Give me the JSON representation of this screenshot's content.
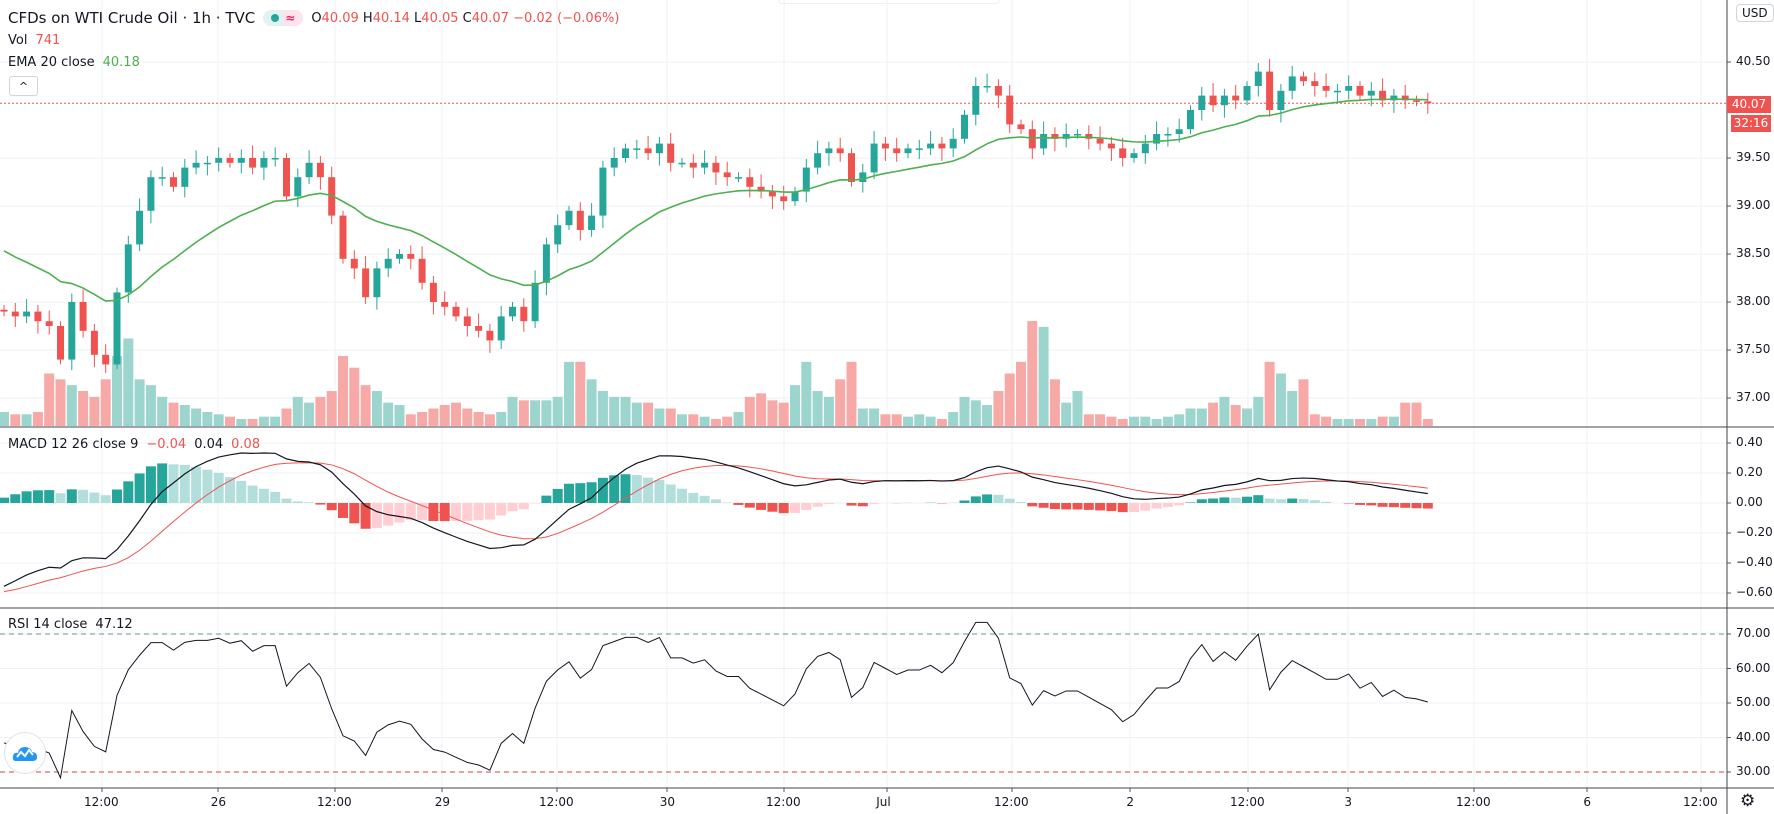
{
  "header": {
    "symbol_title": "CFDs on WTI Crude Oil · 1h · TVC",
    "open_label": "O",
    "open": "40.09",
    "high_label": "H",
    "high": "40.14",
    "low_label": "L",
    "low": "40.05",
    "close_label": "C",
    "close": "40.07",
    "change": "−0.02 (−0.06%)",
    "wave_icon": "≈"
  },
  "legends": {
    "vol_label": "Vol",
    "vol_value": "741",
    "ema_label": "EMA 20 close",
    "ema_value": "40.18",
    "macd_label": "MACD 12 26 close 9",
    "macd_hist": "−0.04",
    "macd_line": "0.04",
    "macd_signal": "0.08",
    "rsi_label": "RSI 14 close",
    "rsi_value": "47.12"
  },
  "buttons": {
    "collapse": "^",
    "currency": "USD",
    "settings_icon": "gear-icon"
  },
  "price_scale": {
    "ticks": [
      "40.50",
      "39.50",
      "39.00",
      "38.50",
      "38.00",
      "37.50",
      "37.00"
    ],
    "last_price": "40.07",
    "countdown": "32:16"
  },
  "macd_scale": {
    "ticks": [
      "0.40",
      "0.20",
      "0.00",
      "−0.20",
      "−0.40",
      "−0.60"
    ]
  },
  "rsi_scale": {
    "ticks": [
      "70.00",
      "60.00",
      "50.00",
      "40.00",
      "30.00"
    ],
    "upper_band": 70,
    "lower_band": 30
  },
  "time_axis": {
    "labels": [
      "12:00",
      "26",
      "12:00",
      "29",
      "12:00",
      "30",
      "12:00",
      "Jul",
      "12:00",
      "2",
      "12:00",
      "3",
      "12:00",
      "6",
      "12:00"
    ]
  },
  "colors": {
    "up": "#26a69a",
    "down": "#ef5350",
    "ema": "#4caf50",
    "macd": "#131722",
    "signal": "#ef5350",
    "rsi": "#131722"
  },
  "chart_data": {
    "type": "candlestick",
    "instrument": "CFDs on WTI Crude Oil",
    "interval": "1h",
    "price_range": [
      36.9,
      40.7
    ],
    "close": [
      37.9,
      37.85,
      37.9,
      37.8,
      37.75,
      37.4,
      38.0,
      37.7,
      37.45,
      37.35,
      38.1,
      38.6,
      38.95,
      39.3,
      39.3,
      39.2,
      39.4,
      39.45,
      39.45,
      39.5,
      39.45,
      39.5,
      39.4,
      39.5,
      39.5,
      39.1,
      39.3,
      39.45,
      39.3,
      38.9,
      38.45,
      38.35,
      38.05,
      38.35,
      38.45,
      38.5,
      38.45,
      38.2,
      38.0,
      37.95,
      37.85,
      37.75,
      37.7,
      37.6,
      37.85,
      37.95,
      37.8,
      38.2,
      38.6,
      38.8,
      38.95,
      38.75,
      38.9,
      39.4,
      39.5,
      39.6,
      39.6,
      39.55,
      39.65,
      39.45,
      39.45,
      39.4,
      39.45,
      39.35,
      39.3,
      39.3,
      39.2,
      39.15,
      39.1,
      39.05,
      39.15,
      39.4,
      39.55,
      39.6,
      39.55,
      39.25,
      39.35,
      39.65,
      39.6,
      39.55,
      39.6,
      39.6,
      39.65,
      39.6,
      39.7,
      39.95,
      40.25,
      40.25,
      40.15,
      39.85,
      39.8,
      39.6,
      39.75,
      39.7,
      39.75,
      39.75,
      39.7,
      39.65,
      39.6,
      39.5,
      39.55,
      39.65,
      39.75,
      39.75,
      39.8,
      40.0,
      40.15,
      40.05,
      40.15,
      40.1,
      40.25,
      40.4,
      40.0,
      40.2,
      40.35,
      40.3,
      40.25,
      40.2,
      40.2,
      40.25,
      40.15,
      40.2,
      40.1,
      40.15,
      40.1,
      40.09,
      40.07
    ],
    "volume": [
      12,
      10,
      10,
      12,
      45,
      40,
      35,
      30,
      25,
      40,
      60,
      75,
      40,
      35,
      25,
      20,
      18,
      15,
      12,
      10,
      8,
      6,
      6,
      8,
      8,
      15,
      25,
      20,
      25,
      30,
      60,
      50,
      35,
      30,
      20,
      18,
      10,
      12,
      15,
      18,
      20,
      15,
      12,
      10,
      12,
      25,
      22,
      22,
      22,
      25,
      55,
      55,
      40,
      30,
      25,
      25,
      20,
      20,
      15,
      15,
      10,
      10,
      8,
      6,
      8,
      12,
      25,
      28,
      22,
      20,
      35,
      55,
      30,
      25,
      40,
      55,
      15,
      15,
      10,
      10,
      8,
      10,
      8,
      6,
      12,
      25,
      22,
      18,
      30,
      45,
      55,
      90,
      85,
      40,
      20,
      30,
      10,
      10,
      8,
      6,
      8,
      8,
      6,
      8,
      10,
      15,
      15,
      20,
      25,
      18,
      15,
      25,
      55,
      45,
      30,
      40,
      10,
      8,
      6,
      6,
      6,
      6,
      8,
      8,
      20,
      20,
      6
    ],
    "indicators": [
      "EMA 20 close",
      "MACD 12 26 close 9",
      "RSI 14 close"
    ],
    "macd_range": [
      -0.65,
      0.45
    ],
    "rsi_range": [
      25,
      77
    ],
    "grid": true
  }
}
